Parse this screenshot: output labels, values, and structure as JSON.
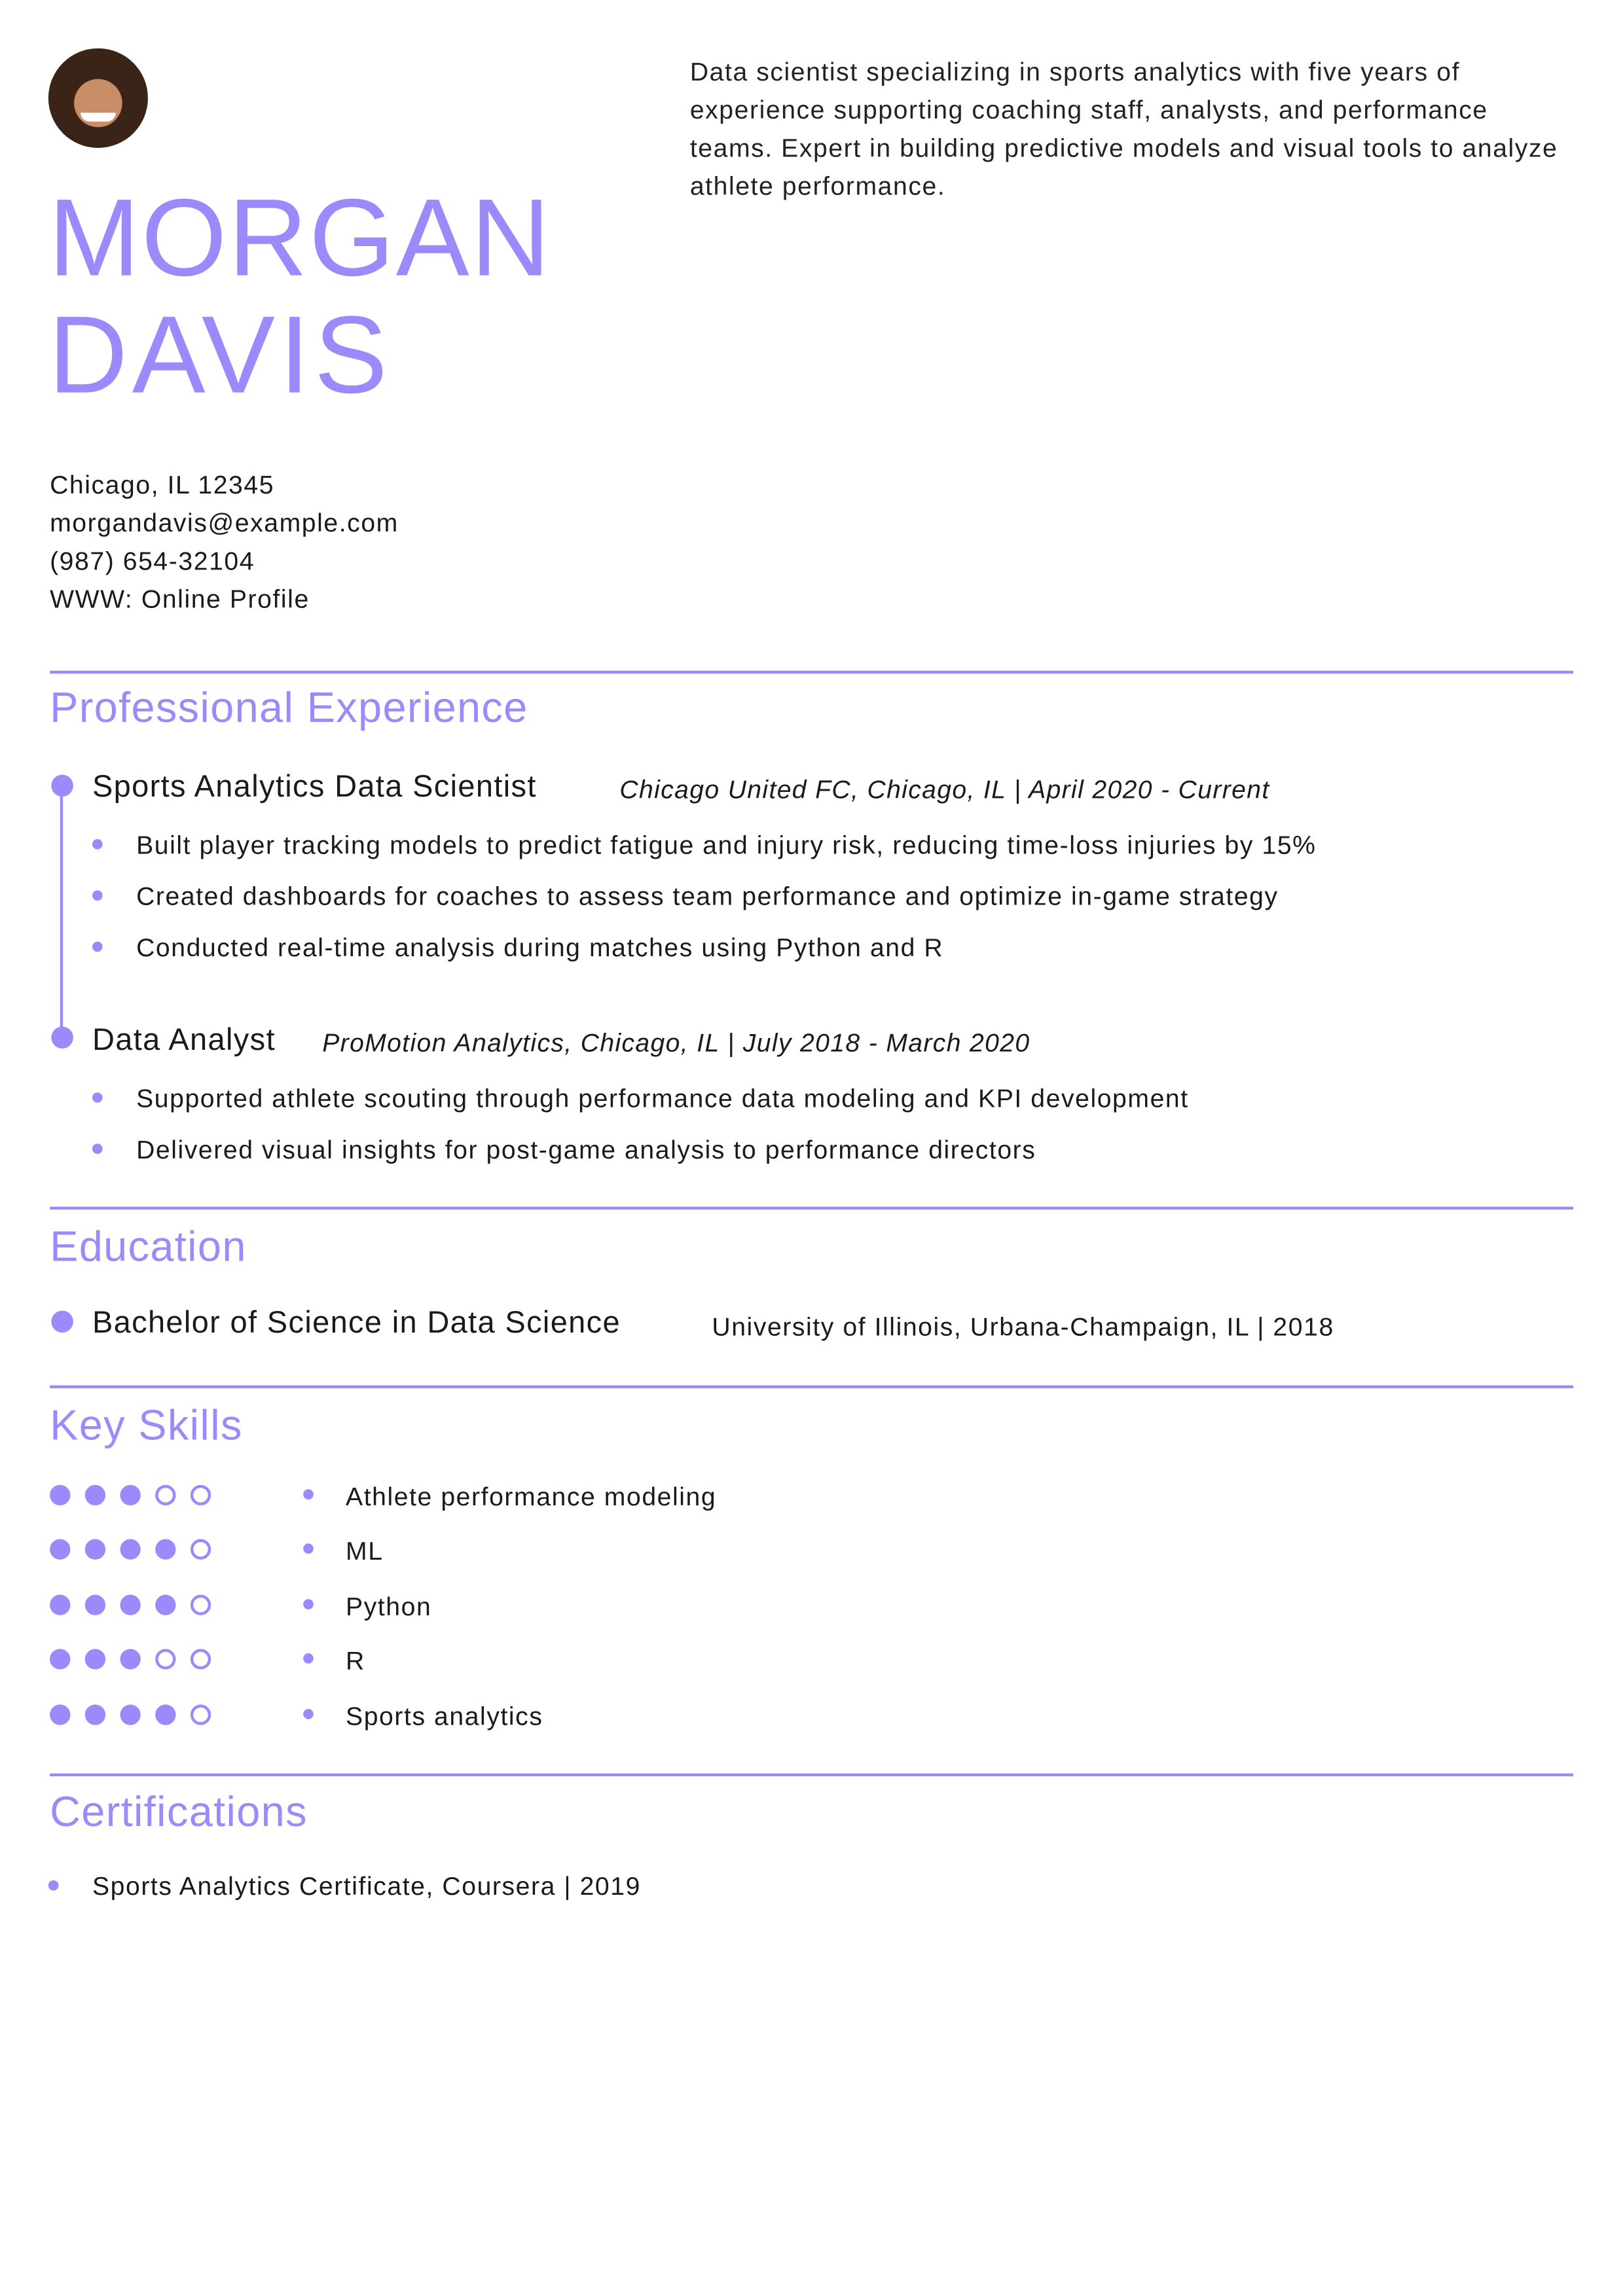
{
  "accent_color": "#9b8afb",
  "header": {
    "photo_icon": "avatar-photo",
    "first_name": "MORGAN",
    "last_name": "DAVIS",
    "summary": "Data scientist specializing in sports analytics with five years of experience supporting coaching staff, analysts, and performance teams. Expert in building predictive models and visual tools to analyze athlete performance."
  },
  "contact": {
    "address": "Chicago, IL 12345",
    "email": "morgandavis@example.com",
    "phone": "(987) 654-32104",
    "website": "WWW: Online Profile"
  },
  "experience": {
    "heading": "Professional Experience",
    "jobs": [
      {
        "title": "Sports Analytics Data Scientist",
        "meta": "Chicago United FC, Chicago, IL | April 2020 - Current",
        "bullets": [
          "Built player tracking models to predict fatigue and injury risk, reducing time-loss injuries by 15%",
          "Created dashboards for coaches to assess team performance and optimize in-game strategy",
          "Conducted real-time analysis during matches using Python and R"
        ]
      },
      {
        "title": "Data Analyst",
        "meta": "ProMotion Analytics, Chicago, IL | July 2018 - March 2020",
        "bullets": [
          "Supported athlete scouting through performance data modeling and KPI development",
          "Delivered visual insights for post-game analysis to performance directors"
        ]
      }
    ]
  },
  "education": {
    "heading": "Education",
    "degree": "Bachelor of Science in Data Science",
    "school": "University of Illinois, Urbana-Champaign, IL | 2018"
  },
  "skills": {
    "heading": "Key Skills",
    "items": [
      {
        "name": "Athlete performance modeling",
        "level": 3,
        "max": 5
      },
      {
        "name": "ML",
        "level": 4,
        "max": 5
      },
      {
        "name": "Python",
        "level": 4,
        "max": 5
      },
      {
        "name": "R",
        "level": 3,
        "max": 5
      },
      {
        "name": "Sports analytics",
        "level": 4,
        "max": 5
      }
    ]
  },
  "certifications": {
    "heading": "Certifications",
    "items": [
      "Sports Analytics Certificate, Coursera | 2019"
    ]
  }
}
